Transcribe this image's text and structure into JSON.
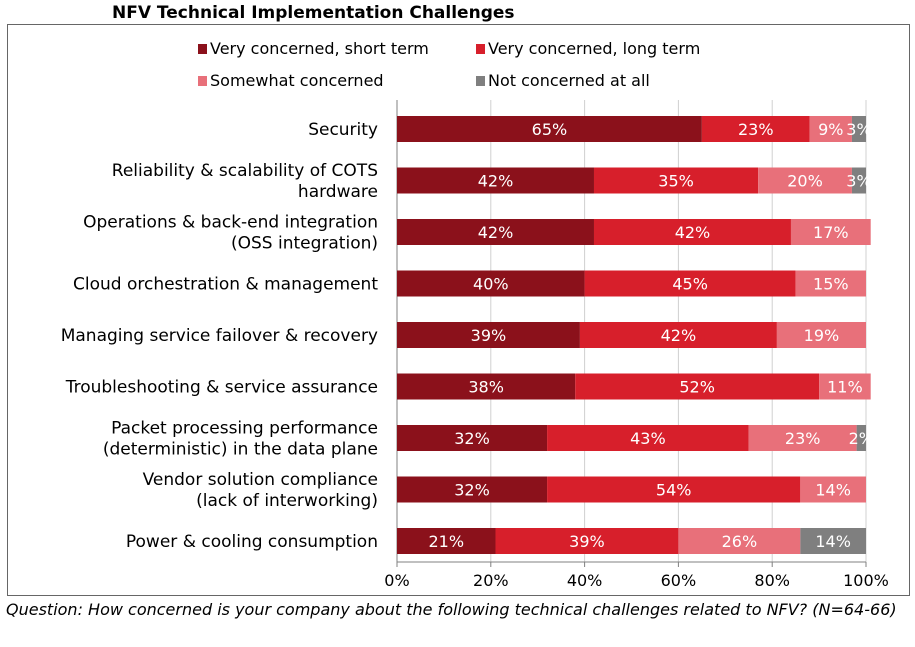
{
  "title": "NFV Technical Implementation Challenges",
  "caption": "Question: How concerned is your company about the following technical challenges related to NFV? (N=64-66)",
  "chart_data": {
    "type": "bar",
    "orientation": "horizontal",
    "stacked": true,
    "categories": [
      [
        "Security"
      ],
      [
        "Reliability & scalability of COTS",
        "hardware"
      ],
      [
        "Operations & back-end integration",
        "(OSS integration)"
      ],
      [
        "Cloud orchestration & management"
      ],
      [
        "Managing service failover & recovery"
      ],
      [
        "Troubleshooting & service assurance"
      ],
      [
        "Packet processing performance",
        "(deterministic) in the data plane"
      ],
      [
        "Vendor solution compliance",
        "(lack of interworking)"
      ],
      [
        "Power & cooling consumption"
      ]
    ],
    "series": [
      {
        "name": "Very concerned, short term",
        "color": "#8b111b",
        "values": [
          65,
          42,
          42,
          40,
          39,
          38,
          32,
          32,
          21
        ]
      },
      {
        "name": "Very concerned, long term",
        "color": "#d71f2b",
        "values": [
          23,
          35,
          42,
          45,
          42,
          52,
          43,
          54,
          39
        ]
      },
      {
        "name": "Somewhat concerned",
        "color": "#e8707a",
        "values": [
          9,
          20,
          17,
          15,
          19,
          11,
          23,
          14,
          26
        ]
      },
      {
        "name": "Not concerned at all",
        "color": "#7f7f7f",
        "values": [
          3,
          3,
          0,
          0,
          0,
          0,
          2,
          0,
          14
        ]
      }
    ],
    "xlim": [
      0,
      100
    ],
    "xticks": [
      "0%",
      "20%",
      "40%",
      "60%",
      "80%",
      "100%"
    ],
    "grid": true,
    "legend_position": "top"
  }
}
